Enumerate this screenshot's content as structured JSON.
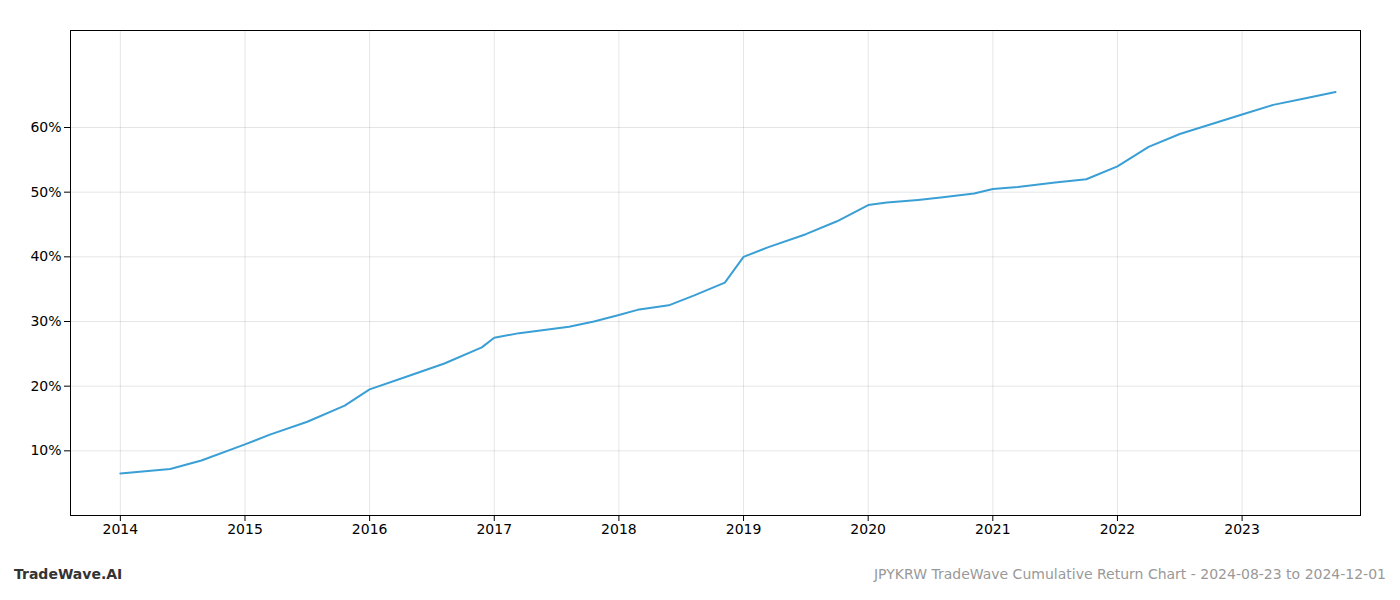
{
  "chart_data": {
    "type": "line",
    "x": [
      2014.0,
      2014.4,
      2014.65,
      2015.0,
      2015.2,
      2015.5,
      2015.8,
      2016.0,
      2016.3,
      2016.6,
      2016.9,
      2017.0,
      2017.2,
      2017.4,
      2017.6,
      2017.8,
      2018.0,
      2018.15,
      2018.4,
      2018.6,
      2018.85,
      2019.0,
      2019.2,
      2019.5,
      2019.75,
      2020.0,
      2020.15,
      2020.4,
      2020.6,
      2020.85,
      2021.0,
      2021.2,
      2021.5,
      2021.75,
      2022.0,
      2022.25,
      2022.5,
      2022.75,
      2023.0,
      2023.25,
      2023.5,
      2023.75
    ],
    "values": [
      6.5,
      7.2,
      8.5,
      11.0,
      12.5,
      14.5,
      17.0,
      19.5,
      21.5,
      23.5,
      26.0,
      27.5,
      28.2,
      28.7,
      29.2,
      30.0,
      31.0,
      31.8,
      32.5,
      34.0,
      36.0,
      40.0,
      41.5,
      43.5,
      45.5,
      48.0,
      48.4,
      48.8,
      49.2,
      49.8,
      50.5,
      50.8,
      51.5,
      52.0,
      54.0,
      57.0,
      59.0,
      60.5,
      62.0,
      63.5,
      64.5,
      65.5
    ],
    "color": "#3a9fd5",
    "xlim": [
      2013.6,
      2023.95
    ],
    "xticks": [
      2014,
      2015,
      2016,
      2017,
      2018,
      2019,
      2020,
      2021,
      2022,
      2023
    ],
    "ylim": [
      0,
      75
    ],
    "yticks": [
      {
        "value": 10,
        "label": "10%"
      },
      {
        "value": 20,
        "label": "20%"
      },
      {
        "value": 30,
        "label": "30%"
      },
      {
        "value": 40,
        "label": "40%"
      },
      {
        "value": 50,
        "label": "50%"
      },
      {
        "value": 60,
        "label": "60%"
      }
    ],
    "grid": true,
    "annotations": [
      "TradeWave.AI",
      "JPYKRW TradeWave Cumulative Return Chart - 2024-08-23 to 2024-12-01"
    ]
  }
}
